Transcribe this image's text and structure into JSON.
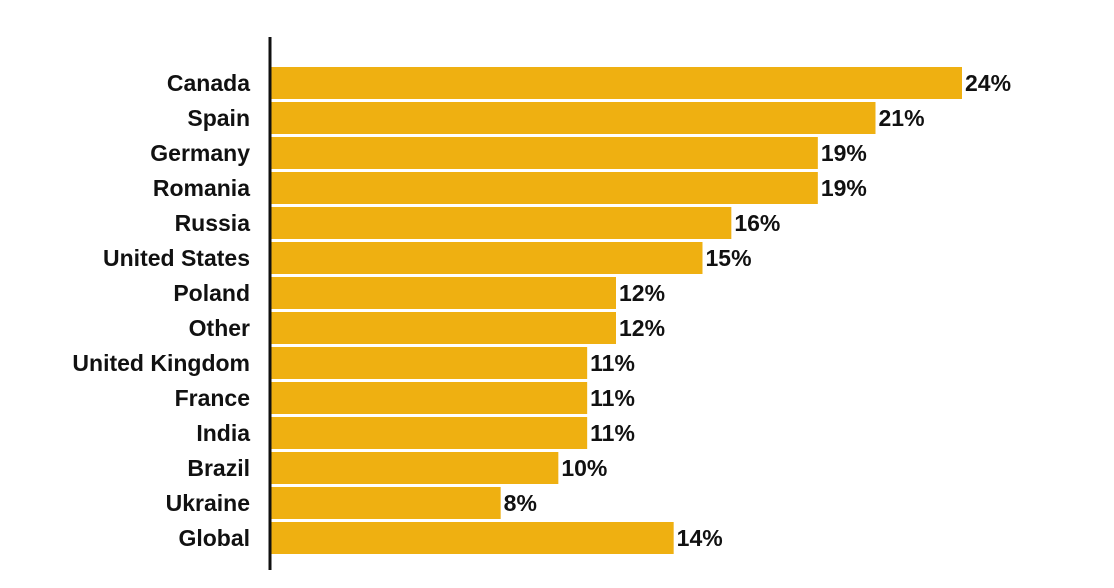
{
  "chart_data": {
    "type": "bar",
    "orientation": "horizontal",
    "categories": [
      "Canada",
      "Spain",
      "Germany",
      "Romania",
      "Russia",
      "United States",
      "Poland",
      "Other",
      "United Kingdom",
      "France",
      "India",
      "Brazil",
      "Ukraine",
      "Global"
    ],
    "values": [
      24,
      21,
      19,
      19,
      16,
      15,
      12,
      12,
      11,
      11,
      11,
      10,
      8,
      14
    ],
    "value_labels": [
      "24%",
      "21%",
      "19%",
      "19%",
      "16%",
      "15%",
      "12%",
      "12%",
      "11%",
      "11%",
      "11%",
      "10%",
      "8%",
      "14%"
    ],
    "unit": "%",
    "title": "",
    "xlabel": "",
    "ylabel": "",
    "xlim": [
      0,
      24
    ],
    "grid": false,
    "legend": "none",
    "bar_color": "#EFB011",
    "axis_color": "#111111",
    "text_color": "#111111"
  }
}
